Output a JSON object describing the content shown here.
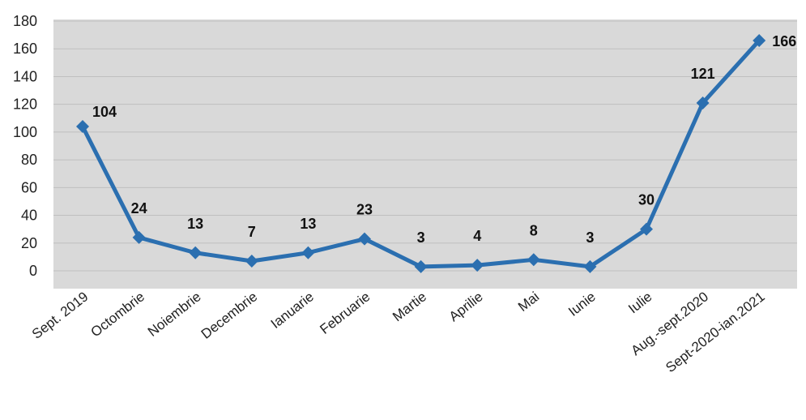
{
  "chart_data": {
    "type": "line",
    "title": "",
    "xlabel": "",
    "ylabel": "",
    "categories": [
      "Sept. 2019",
      "Octombrie",
      "Noiembrie",
      "Decembrie",
      "Ianuarie",
      "Februarie",
      "Martie",
      "Aprilie",
      "Mai",
      "Iunie",
      "Iulie",
      "Aug.-sept.2020",
      "Sept-2020-ian.2021"
    ],
    "series": [
      {
        "values": [
          104,
          24,
          13,
          7,
          13,
          23,
          3,
          4,
          8,
          3,
          30,
          121,
          166
        ],
        "color": "#2B6FB0"
      }
    ],
    "y_ticks": [
      "0",
      "20",
      "40",
      "60",
      "80",
      "100",
      "120",
      "140",
      "160",
      "180"
    ],
    "ylim": [
      0,
      180
    ],
    "grid": true,
    "legend": "none",
    "plot_background": "#D9D9D9"
  }
}
